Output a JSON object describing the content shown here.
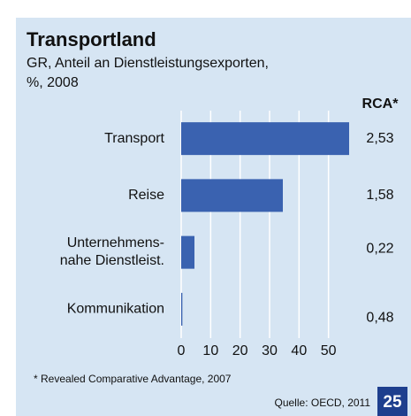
{
  "chart_data": {
    "type": "hbar",
    "title": "Transportland",
    "subtitle": [
      "GR, Anteil an Dienstleistungsexporten,",
      "%, 2008"
    ],
    "categories": [
      "Transport",
      "Reise",
      "Unternehmens-\nnahe Dienstleist.",
      "Kommunikation"
    ],
    "values": [
      57,
      34.5,
      4.5,
      0.4
    ],
    "color": "#3a62b0",
    "xlim": [
      0,
      60
    ],
    "xticks": [
      0,
      10,
      20,
      30,
      40,
      50
    ],
    "grid": true,
    "rca_title": "RCA*",
    "rca_labels": [
      "2,53",
      "1,58",
      "0,22",
      "0,48"
    ],
    "footnote": "* Revealed Comparative Advantage, 2007",
    "source": "Quelle: OECD, 2011",
    "page_number": "25"
  }
}
